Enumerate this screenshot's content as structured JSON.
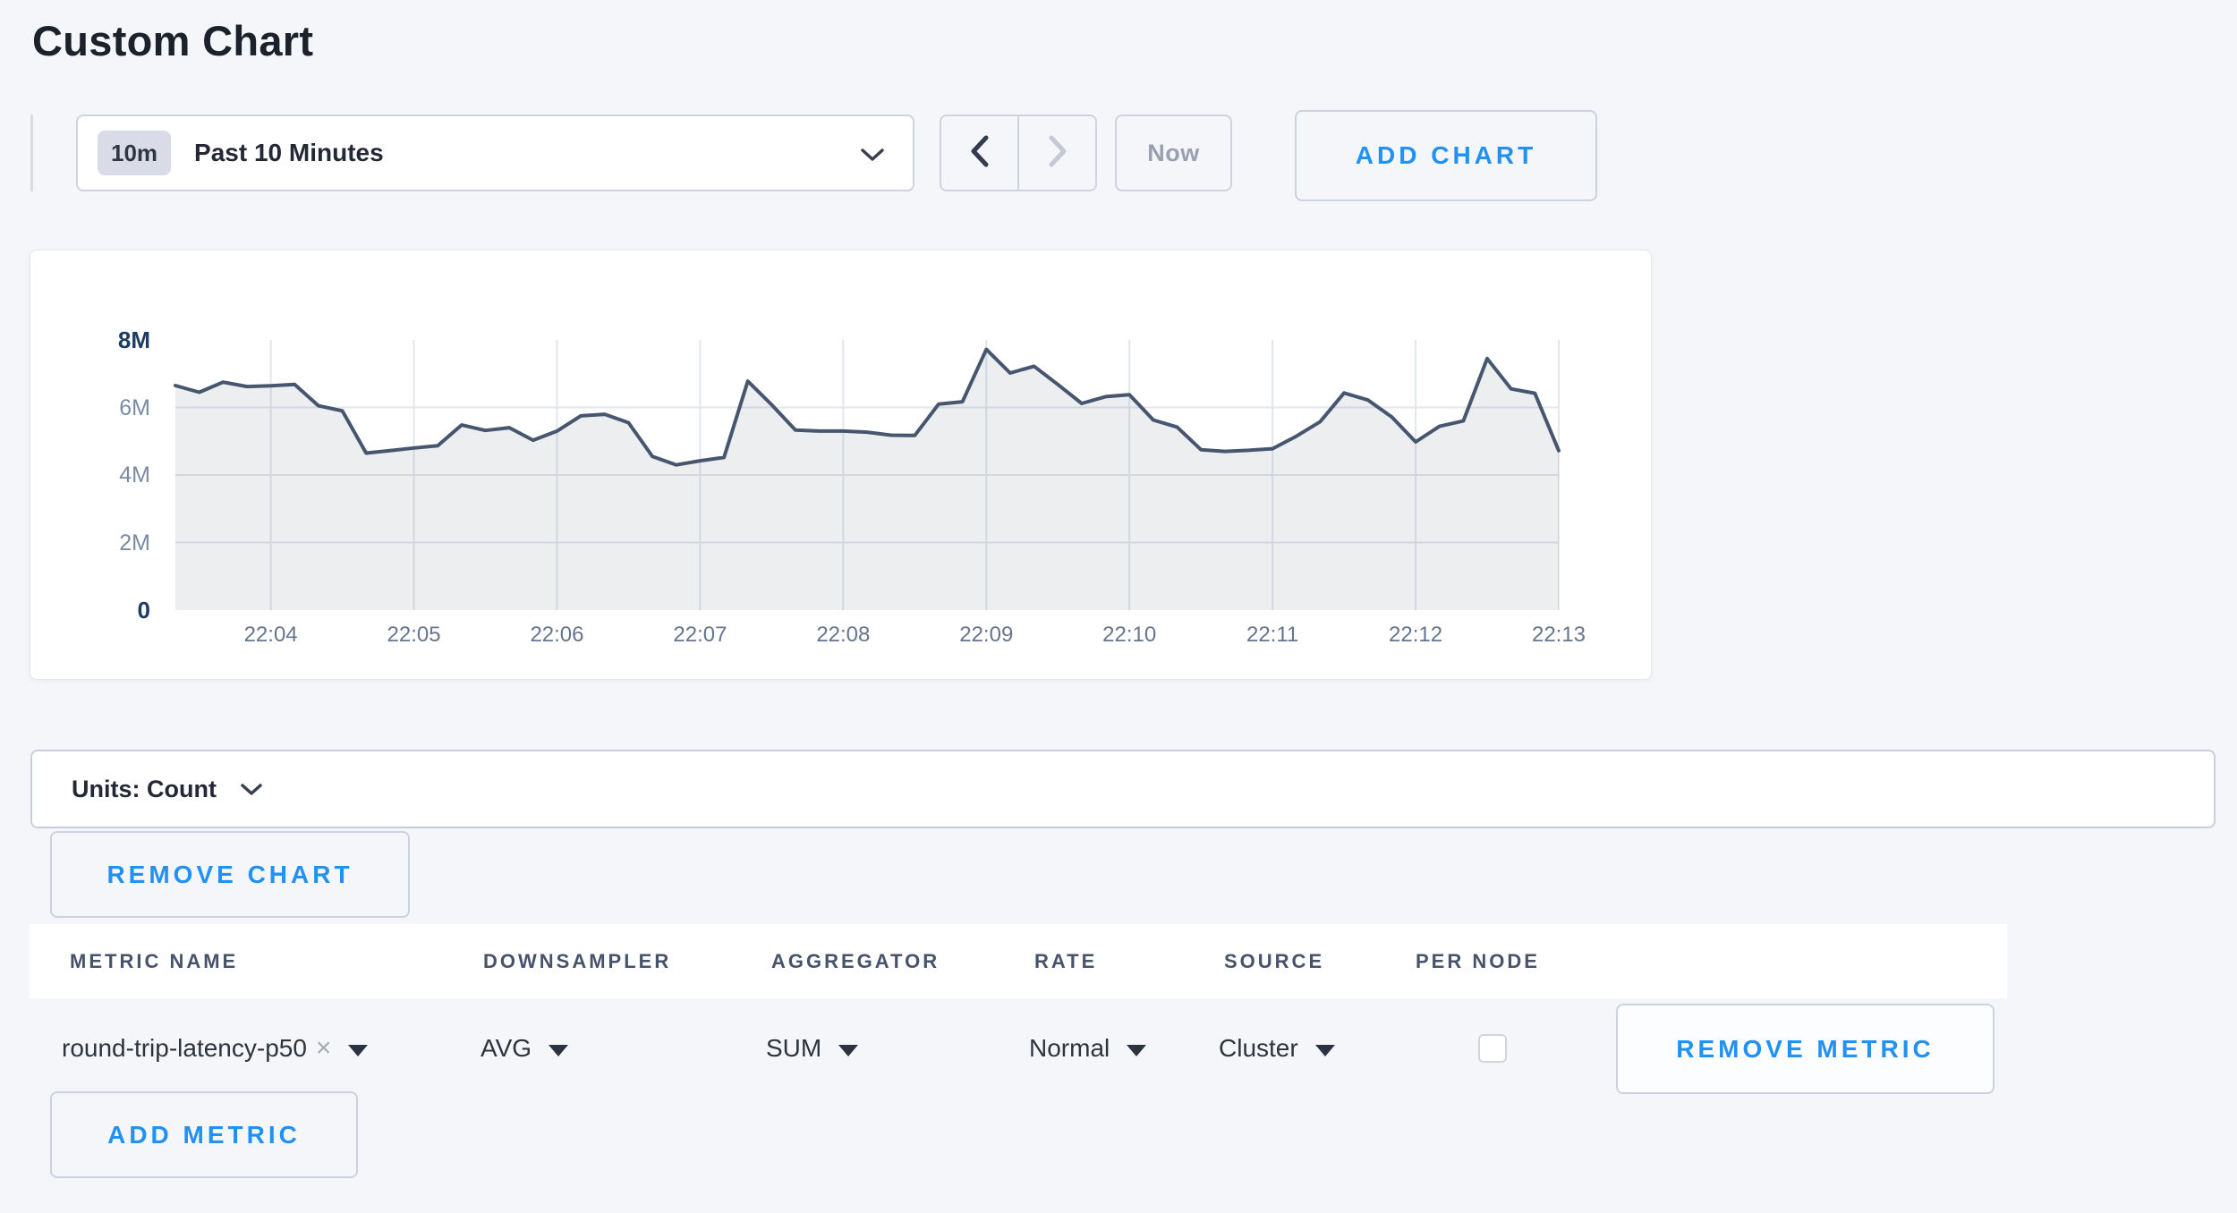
{
  "page": {
    "title": "Custom Chart"
  },
  "toolbar": {
    "time_range": {
      "badge": "10m",
      "label": "Past 10 Minutes"
    },
    "now_label": "Now",
    "add_chart_label": "ADD CHART"
  },
  "chart_data": {
    "type": "area",
    "title": "",
    "xlabel": "",
    "ylabel": "",
    "x_tick_labels": [
      "22:04",
      "22:05",
      "22:06",
      "22:07",
      "22:08",
      "22:09",
      "22:10",
      "22:11",
      "22:12",
      "22:13"
    ],
    "y_tick_labels": [
      "0",
      "2M",
      "4M",
      "6M",
      "8M"
    ],
    "y_tick_values_millions": [
      0,
      2,
      4,
      6,
      8
    ],
    "ylim_millions": [
      0,
      8
    ],
    "x_first_tick_point_index": 4,
    "x_points_per_tick": 6,
    "sample_interval_seconds": 10,
    "grid": true,
    "legend_position": "none",
    "series": [
      {
        "name": "round-trip-latency-p50",
        "values_millions": [
          6.65,
          6.45,
          6.75,
          6.62,
          6.64,
          6.68,
          6.05,
          5.9,
          4.65,
          4.72,
          4.8,
          4.87,
          5.48,
          5.32,
          5.4,
          5.03,
          5.3,
          5.75,
          5.8,
          5.55,
          4.55,
          4.3,
          4.42,
          4.52,
          6.78,
          6.08,
          5.33,
          5.3,
          5.3,
          5.27,
          5.18,
          5.17,
          6.1,
          6.17,
          7.72,
          7.02,
          7.22,
          6.68,
          6.12,
          6.32,
          6.38,
          5.63,
          5.42,
          4.75,
          4.7,
          4.73,
          4.78,
          5.15,
          5.58,
          6.43,
          6.22,
          5.72,
          4.98,
          5.44,
          5.6,
          7.45,
          6.55,
          6.42,
          4.72
        ]
      }
    ]
  },
  "units_bar": {
    "label": "Units: Count"
  },
  "buttons": {
    "remove_chart": "REMOVE CHART",
    "add_metric": "ADD METRIC",
    "remove_metric": "REMOVE METRIC"
  },
  "metrics_table": {
    "columns": [
      "METRIC NAME",
      "DOWNSAMPLER",
      "AGGREGATOR",
      "RATE",
      "SOURCE",
      "PER NODE"
    ],
    "rows": [
      {
        "metric_name": "round-trip-latency-p50",
        "remove_tag": "×",
        "downsampler": "AVG",
        "aggregator": "SUM",
        "rate": "Normal",
        "source": "Cluster",
        "per_node_checked": false
      }
    ]
  },
  "colors": {
    "accent_blue": "#2191f4",
    "line": "#47566f",
    "area_fill": "rgba(71,86,111,0.10)",
    "grid": "#e3e6ed",
    "axis_strong": "#1d3c61",
    "axis_muted": "#7b8ba4",
    "x_label": "#66758e"
  }
}
